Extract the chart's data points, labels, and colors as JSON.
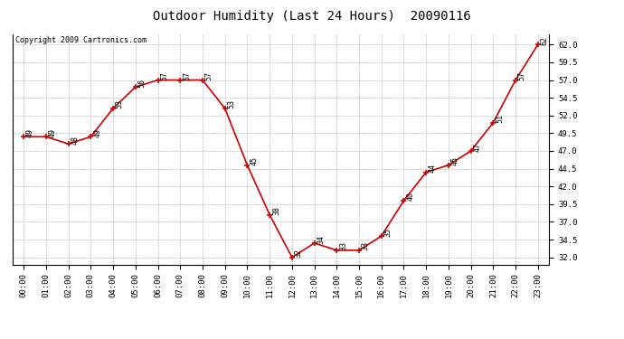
{
  "title": "Outdoor Humidity (Last 24 Hours)  20090116",
  "copyright_text": "Copyright 2009 Cartronics.com",
  "hours": [
    0,
    1,
    2,
    3,
    4,
    5,
    6,
    7,
    8,
    9,
    10,
    11,
    12,
    13,
    14,
    15,
    16,
    17,
    18,
    19,
    20,
    21,
    22,
    23
  ],
  "values": [
    49,
    49,
    48,
    49,
    53,
    56,
    57,
    57,
    57,
    53,
    45,
    38,
    32,
    34,
    33,
    33,
    35,
    40,
    44,
    45,
    47,
    51,
    57,
    62
  ],
  "x_labels": [
    "00:00",
    "01:00",
    "02:00",
    "03:00",
    "04:00",
    "05:00",
    "06:00",
    "07:00",
    "08:00",
    "09:00",
    "10:00",
    "11:00",
    "12:00",
    "13:00",
    "14:00",
    "15:00",
    "16:00",
    "17:00",
    "18:00",
    "19:00",
    "20:00",
    "21:00",
    "22:00",
    "23:00"
  ],
  "ylim": [
    31.0,
    63.5
  ],
  "yticks": [
    32.0,
    34.5,
    37.0,
    39.5,
    42.0,
    44.5,
    47.0,
    49.5,
    52.0,
    54.5,
    57.0,
    59.5,
    62.0
  ],
  "ytick_labels": [
    "32.0",
    "34.5",
    "37.0",
    "39.5",
    "42.0",
    "44.5",
    "47.0",
    "49.5",
    "52.0",
    "54.5",
    "57.0",
    "59.5",
    "62.0"
  ],
  "line_color": "#cc0000",
  "marker_color": "#cc0000",
  "bg_color": "#ffffff",
  "grid_color": "#aaaaaa",
  "title_fontsize": 10,
  "label_fontsize": 6.5,
  "annot_fontsize": 6,
  "copyright_fontsize": 6,
  "fig_width": 6.9,
  "fig_height": 3.75,
  "dpi": 100
}
